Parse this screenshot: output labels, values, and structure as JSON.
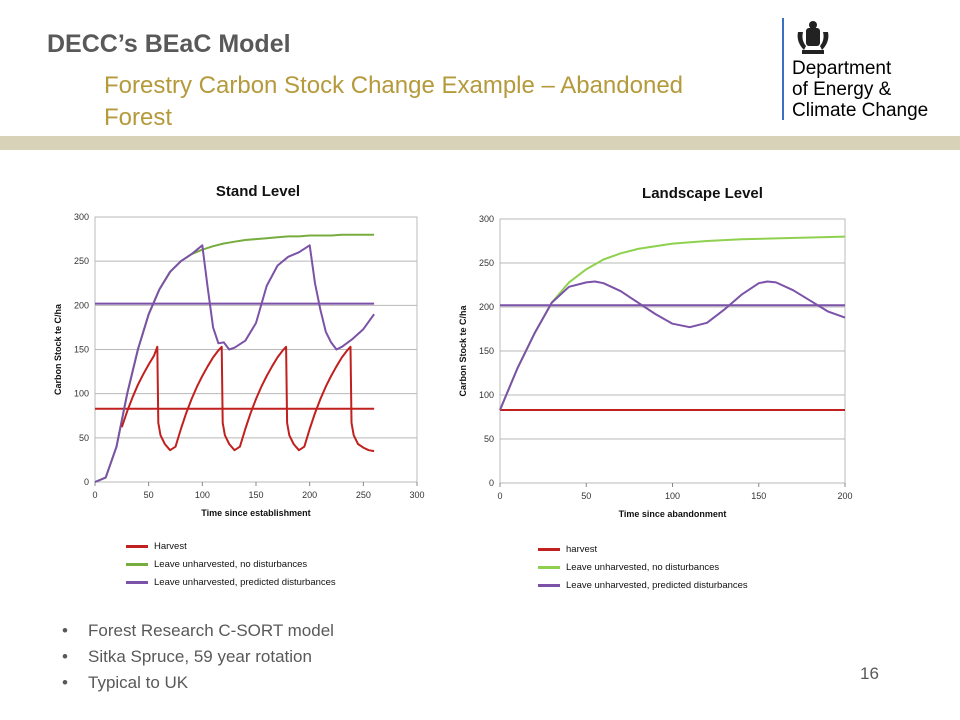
{
  "header": {
    "title": "DECC’s BEaC Model",
    "subtitle": "Forestry Carbon Stock Change Example – Abandoned Forest",
    "department": [
      "Department",
      "of Energy &",
      "Climate Change"
    ]
  },
  "colors": {
    "harvest": "#c0201e",
    "no_dist": "#77ad3f",
    "no_dist_light": "#8fd14f",
    "pred_dist": "#7b52a8",
    "band": "#d8d2b8",
    "dept_bar": "#3a6fc4"
  },
  "chart_data": [
    {
      "type": "line",
      "title": "Stand Level",
      "xlabel": "Time since establishment",
      "ylabel": "Carbon Stock te C/ha",
      "xlim": [
        0,
        300
      ],
      "ylim": [
        0,
        300
      ],
      "xticks": [
        "0",
        "50",
        "100",
        "150",
        "200",
        "250",
        "300"
      ],
      "yticks": [
        "0",
        "50",
        "100",
        "150",
        "200",
        "250",
        "300"
      ],
      "grid": "horizontal",
      "legend": "bottom",
      "series": [
        {
          "name": "Harvest",
          "color": "#c0201e",
          "x": [
            0,
            260
          ],
          "y": [
            83,
            83
          ]
        },
        {
          "name": "Leave unharvested, no disturbances",
          "color": "#77ad3f",
          "x": [
            0,
            10,
            20,
            30,
            40,
            50,
            60,
            70,
            80,
            90,
            100,
            110,
            120,
            130,
            140,
            150,
            160,
            170,
            180,
            190,
            200,
            210,
            220,
            230,
            240,
            250,
            260
          ],
          "y": [
            0,
            5,
            40,
            100,
            150,
            190,
            218,
            238,
            250,
            258,
            263,
            267,
            270,
            272,
            274,
            275,
            276,
            277,
            278,
            278,
            279,
            279,
            279,
            280,
            280,
            280,
            280
          ]
        },
        {
          "name": "Leave unharvested, predicted disturbances",
          "color": "#7b52a8",
          "x": [
            0,
            10,
            20,
            30,
            40,
            50,
            60,
            70,
            80,
            90,
            100,
            105,
            110,
            115,
            120,
            125,
            130,
            140,
            150,
            160,
            170,
            180,
            190,
            200,
            205,
            210,
            215,
            220,
            225,
            230,
            240,
            250,
            260
          ],
          "y": [
            0,
            5,
            40,
            100,
            150,
            190,
            218,
            238,
            250,
            258,
            268,
            220,
            175,
            157,
            158,
            150,
            152,
            160,
            180,
            222,
            245,
            255,
            260,
            268,
            225,
            195,
            170,
            158,
            150,
            153,
            162,
            173,
            190
          ]
        },
        {
          "name": "",
          "color": "#7b52a8",
          "x": [
            0,
            260
          ],
          "y": [
            202,
            202
          ]
        },
        {
          "name": "",
          "color": "#c0201e",
          "x": [
            25,
            30,
            35,
            40,
            45,
            50,
            55,
            58,
            59,
            61,
            65,
            70,
            75,
            80,
            85,
            90,
            95,
            100,
            105,
            110,
            115,
            118,
            119,
            121,
            125,
            130,
            135,
            140,
            145,
            150,
            155,
            160,
            165,
            170,
            175,
            178,
            179,
            181,
            185,
            190,
            195,
            200,
            205,
            210,
            215,
            220,
            225,
            230,
            235,
            238,
            239,
            241,
            245,
            250,
            255,
            260
          ],
          "y": [
            62,
            80,
            96,
            110,
            122,
            133,
            143,
            153,
            67,
            53,
            43,
            36,
            40,
            60,
            78,
            94,
            108,
            120,
            131,
            141,
            149,
            153,
            67,
            53,
            43,
            36,
            40,
            60,
            78,
            94,
            108,
            120,
            131,
            141,
            149,
            153,
            67,
            53,
            43,
            36,
            40,
            60,
            78,
            94,
            108,
            120,
            131,
            141,
            149,
            153,
            67,
            53,
            43,
            39,
            36,
            35
          ]
        }
      ]
    },
    {
      "type": "line",
      "title": "Landscape Level",
      "xlabel": "Time since abandonment",
      "ylabel": "Carbon Stock te C/ha",
      "xlim": [
        0,
        200
      ],
      "ylim": [
        0,
        300
      ],
      "xticks": [
        "0",
        "50",
        "100",
        "150",
        "200"
      ],
      "yticks": [
        "0",
        "50",
        "100",
        "150",
        "200",
        "250",
        "300"
      ],
      "grid": "horizontal",
      "legend": "bottom",
      "series": [
        {
          "name": "harvest",
          "color": "#c0201e",
          "x": [
            0,
            200
          ],
          "y": [
            83,
            83
          ]
        },
        {
          "name": "Leave unharvested, no disturbances",
          "color": "#8fd14f",
          "x": [
            0,
            10,
            20,
            30,
            40,
            50,
            60,
            70,
            80,
            90,
            100,
            120,
            140,
            160,
            180,
            200
          ],
          "y": [
            83,
            130,
            170,
            205,
            228,
            243,
            254,
            261,
            266,
            269,
            272,
            275,
            277,
            278,
            279,
            280
          ]
        },
        {
          "name": "Leave unharvested, predicted disturbances",
          "color": "#7b52a8",
          "x": [
            0,
            10,
            20,
            30,
            40,
            50,
            55,
            60,
            70,
            80,
            90,
            100,
            110,
            120,
            130,
            140,
            150,
            155,
            160,
            170,
            180,
            190,
            200
          ],
          "y": [
            83,
            130,
            170,
            205,
            223,
            228,
            229,
            227,
            218,
            205,
            192,
            181,
            177,
            182,
            197,
            214,
            227,
            229,
            228,
            219,
            207,
            195,
            188
          ]
        },
        {
          "name": "",
          "color": "#7b52a8",
          "x": [
            0,
            200
          ],
          "y": [
            202,
            202
          ]
        }
      ]
    }
  ],
  "legend_stand": [
    "Harvest",
    "Leave unharvested, no disturbances",
    "Leave unharvested, predicted disturbances"
  ],
  "legend_land": [
    "harvest",
    "Leave unharvested, no disturbances",
    "Leave unharvested, predicted disturbances"
  ],
  "bullets": [
    "Forest Research C-SORT model",
    "Sitka Spruce, 59 year rotation",
    "Typical to UK"
  ],
  "page_number": "16"
}
